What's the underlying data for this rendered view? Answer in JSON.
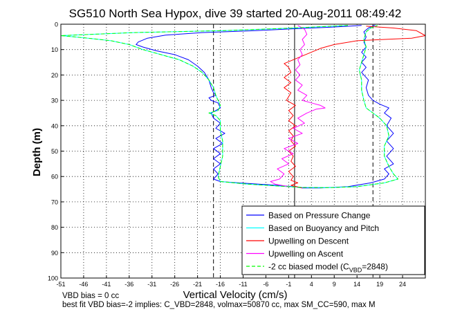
{
  "chart_data": {
    "type": "line",
    "title": "SG510 North Sea Hypox, dive 39 started 20-Aug-2011 08:49:42",
    "xlabel": "Vertical Velocity (cm/s)",
    "ylabel": "Depth (m)",
    "xlim": [
      -51,
      29
    ],
    "ylim": [
      0,
      100
    ],
    "y_reversed": true,
    "grid": true,
    "xticks": [
      -51,
      -46,
      -41,
      -36,
      -31,
      -26,
      -21,
      -16,
      -11,
      -6,
      -1,
      4,
      9,
      14,
      19,
      24
    ],
    "yticks": [
      0,
      10,
      20,
      30,
      40,
      50,
      60,
      70,
      80,
      90,
      100
    ],
    "vlines": [
      {
        "x": -17.5,
        "style": "dashed",
        "color": "#000000"
      },
      {
        "x": 0.3,
        "style": "solid",
        "color": "#000000"
      },
      {
        "x": 17.5,
        "style": "dashed",
        "color": "#000000"
      }
    ],
    "legend": {
      "position": "bottom-right",
      "entries": [
        {
          "label": "Based on Pressure Change",
          "color": "#0000ff",
          "style": "solid"
        },
        {
          "label": "Based on Buoyancy and Pitch",
          "color": "#00ffff",
          "style": "solid"
        },
        {
          "label": "Upwelling on Descent",
          "color": "#ff0000",
          "style": "solid"
        },
        {
          "label": "Upwelling on Ascent",
          "color": "#ff00ff",
          "style": "solid"
        },
        {
          "label": "-2 cc biased model (C",
          "sub": "VBD",
          "suffix": "=2848)",
          "color": "#00ff00",
          "style": "dashed"
        }
      ]
    },
    "series": [
      {
        "name": "Based on Pressure Change",
        "color": "#0000ff",
        "points": [
          [
            15,
            0.5
          ],
          [
            8,
            1.2
          ],
          [
            0,
            1.8
          ],
          [
            -8,
            2.5
          ],
          [
            -20,
            3.3
          ],
          [
            -28,
            4.3
          ],
          [
            -32,
            5.5
          ],
          [
            -34,
            7
          ],
          [
            -34.5,
            8
          ],
          [
            -33,
            9
          ],
          [
            -30,
            10.5
          ],
          [
            -26,
            12
          ],
          [
            -23,
            14
          ],
          [
            -21,
            16.5
          ],
          [
            -19.5,
            19
          ],
          [
            -18.5,
            22
          ],
          [
            -18,
            25
          ],
          [
            -17.5,
            27
          ],
          [
            -17,
            28
          ],
          [
            -18.5,
            29
          ],
          [
            -18,
            30
          ],
          [
            -16.5,
            31
          ],
          [
            -16,
            33
          ],
          [
            -17,
            34
          ],
          [
            -18,
            35
          ],
          [
            -17.5,
            37
          ],
          [
            -16,
            39
          ],
          [
            -17,
            41
          ],
          [
            -15,
            43
          ],
          [
            -17,
            45
          ],
          [
            -15.5,
            47
          ],
          [
            -17.5,
            49
          ],
          [
            -16,
            51
          ],
          [
            -17.5,
            53
          ],
          [
            -16,
            55
          ],
          [
            -17.5,
            57
          ],
          [
            -16.5,
            59
          ],
          [
            -17.5,
            61
          ],
          [
            -16,
            62
          ],
          [
            -12,
            62.5
          ],
          [
            -5,
            63.3
          ],
          [
            0,
            64
          ],
          [
            2,
            64.5
          ],
          [
            6,
            64.5
          ],
          [
            12,
            64
          ],
          [
            17,
            62.5
          ],
          [
            20,
            61
          ],
          [
            21,
            59
          ],
          [
            20,
            57
          ],
          [
            22,
            55
          ],
          [
            20.5,
            52
          ],
          [
            22,
            49
          ],
          [
            20.5,
            46
          ],
          [
            22,
            43
          ],
          [
            20.5,
            40
          ],
          [
            21.5,
            37
          ],
          [
            20,
            35
          ],
          [
            21,
            33
          ],
          [
            19,
            31.5
          ],
          [
            17.5,
            30
          ],
          [
            16.5,
            28
          ],
          [
            16,
            25
          ],
          [
            16.5,
            22
          ],
          [
            15,
            19
          ],
          [
            16,
            17
          ],
          [
            15,
            15
          ],
          [
            16,
            13
          ],
          [
            15,
            11
          ],
          [
            16,
            9
          ],
          [
            15.5,
            7
          ],
          [
            16,
            5
          ],
          [
            15.5,
            3
          ],
          [
            16.5,
            1.5
          ],
          [
            18,
            0.3
          ]
        ]
      },
      {
        "name": "Based on Buoyancy and Pitch",
        "color": "#00ffff",
        "points": [
          [
            12,
            0.5
          ],
          [
            0,
            1.5
          ],
          [
            -15,
            2.5
          ],
          [
            -35,
            3.3
          ],
          [
            -51,
            4.5
          ],
          [
            -45,
            5.5
          ],
          [
            -40,
            6.5
          ],
          [
            -36,
            8
          ],
          [
            -33,
            10
          ],
          [
            -29,
            12
          ],
          [
            -25,
            14
          ],
          [
            -22,
            16.5
          ],
          [
            -20,
            19
          ],
          [
            -18.5,
            22
          ],
          [
            -17.5,
            25
          ],
          [
            -17,
            28
          ],
          [
            -16.5,
            30
          ],
          [
            -16,
            32
          ],
          [
            -16.5,
            34
          ],
          [
            -18.5,
            35
          ],
          [
            -17,
            36
          ],
          [
            -16,
            38
          ],
          [
            -16,
            42
          ],
          [
            -15.5,
            46
          ],
          [
            -15.5,
            52
          ],
          [
            -16,
            56
          ],
          [
            -16.5,
            60
          ],
          [
            -16,
            62
          ],
          [
            -10,
            63
          ],
          [
            -3,
            63.8
          ],
          [
            2,
            64.3
          ],
          [
            8,
            64.4
          ],
          [
            14,
            64
          ],
          [
            20,
            62.5
          ],
          [
            23,
            61
          ],
          [
            22,
            59
          ],
          [
            21,
            56
          ],
          [
            20,
            52
          ],
          [
            20,
            48
          ],
          [
            21,
            44
          ],
          [
            20.5,
            40
          ],
          [
            19,
            37
          ],
          [
            17.5,
            35
          ],
          [
            16,
            33
          ],
          [
            15.5,
            30
          ],
          [
            15,
            26
          ],
          [
            15,
            22
          ],
          [
            14.5,
            18
          ],
          [
            15,
            15
          ],
          [
            15.5,
            12
          ],
          [
            16,
            9
          ],
          [
            15.5,
            6
          ],
          [
            16,
            3
          ],
          [
            17,
            1.5
          ],
          [
            18.5,
            0.5
          ]
        ]
      },
      {
        "name": "Upwelling on Descent",
        "color": "#ff0000",
        "points": [
          [
            16,
            0.8
          ],
          [
            22,
            1.5
          ],
          [
            27,
            2.5
          ],
          [
            29,
            4.5
          ],
          [
            26,
            5.5
          ],
          [
            20,
            6
          ],
          [
            14,
            6.5
          ],
          [
            9,
            8
          ],
          [
            6,
            9.5
          ],
          [
            4,
            11
          ],
          [
            2,
            12.5
          ],
          [
            0,
            14
          ],
          [
            -2,
            15.5
          ],
          [
            -1,
            17
          ],
          [
            -0.5,
            19
          ],
          [
            -2,
            21
          ],
          [
            -0.5,
            23
          ],
          [
            -2,
            25
          ],
          [
            -0.5,
            27
          ],
          [
            -1.5,
            30
          ],
          [
            0.5,
            32
          ],
          [
            -1,
            34
          ],
          [
            0,
            36
          ],
          [
            -1,
            38
          ],
          [
            0.5,
            40
          ],
          [
            -1,
            42
          ],
          [
            0,
            44
          ],
          [
            -0.5,
            46
          ],
          [
            0.5,
            48
          ],
          [
            -1,
            50
          ],
          [
            0,
            52
          ],
          [
            -0.5,
            54
          ],
          [
            0.5,
            56
          ],
          [
            -1,
            58
          ],
          [
            0,
            60
          ],
          [
            -0.5,
            61.5
          ],
          [
            1,
            62.5
          ],
          [
            -0.5,
            63.5
          ],
          [
            2,
            64.5
          ]
        ]
      },
      {
        "name": "Upwelling on Ascent",
        "color": "#ff00ff",
        "points": [
          [
            -1,
            64
          ],
          [
            -4,
            63
          ],
          [
            -5,
            62
          ],
          [
            -3,
            61
          ],
          [
            -2,
            59
          ],
          [
            -3.5,
            57
          ],
          [
            -1,
            55
          ],
          [
            -2.5,
            53
          ],
          [
            0,
            51
          ],
          [
            -2,
            49
          ],
          [
            1,
            47
          ],
          [
            -1,
            45
          ],
          [
            2,
            43
          ],
          [
            0,
            41
          ],
          [
            2.5,
            39
          ],
          [
            1,
            37
          ],
          [
            3,
            35
          ],
          [
            5,
            33.5
          ],
          [
            7,
            33
          ],
          [
            6,
            32
          ],
          [
            4,
            31
          ],
          [
            2,
            30
          ],
          [
            3,
            28
          ],
          [
            1,
            26
          ],
          [
            2,
            24
          ],
          [
            0.5,
            22
          ],
          [
            1.5,
            20
          ],
          [
            0.5,
            18
          ],
          [
            1.5,
            16
          ],
          [
            1,
            14
          ],
          [
            2,
            12
          ],
          [
            1.5,
            10
          ],
          [
            2.5,
            8
          ],
          [
            2,
            6
          ],
          [
            3,
            4
          ],
          [
            2.5,
            2
          ],
          [
            1,
            0.5
          ]
        ]
      },
      {
        "name": "-2 cc biased model (C_VBD=2848)",
        "color": "#00ff00",
        "points": [
          [
            12,
            0.5
          ],
          [
            0,
            1.5
          ],
          [
            -15,
            2.5
          ],
          [
            -35,
            3.3
          ],
          [
            -51,
            4.5
          ],
          [
            -45,
            5.5
          ],
          [
            -40,
            6.5
          ],
          [
            -36,
            8
          ],
          [
            -33,
            10
          ],
          [
            -29,
            12
          ],
          [
            -25,
            14
          ],
          [
            -22,
            16.5
          ],
          [
            -20,
            19
          ],
          [
            -18.5,
            22
          ],
          [
            -17.5,
            25
          ],
          [
            -17,
            28
          ],
          [
            -16.5,
            30
          ],
          [
            -16,
            32
          ],
          [
            -16.5,
            34
          ],
          [
            -18.5,
            35
          ],
          [
            -17,
            36
          ],
          [
            -16,
            38
          ],
          [
            -16,
            42
          ],
          [
            -15.5,
            46
          ],
          [
            -15.5,
            52
          ],
          [
            -16,
            56
          ],
          [
            -16.5,
            60
          ],
          [
            -16,
            62
          ],
          [
            -10,
            63
          ],
          [
            -3,
            63.8
          ],
          [
            2,
            64.3
          ],
          [
            8,
            64.4
          ],
          [
            14,
            64
          ],
          [
            20,
            62.5
          ],
          [
            23,
            61
          ],
          [
            22,
            59
          ],
          [
            21,
            56
          ],
          [
            20,
            52
          ],
          [
            20,
            48
          ],
          [
            21,
            44
          ],
          [
            20.5,
            40
          ],
          [
            19,
            37
          ],
          [
            17.5,
            35
          ],
          [
            16,
            33
          ],
          [
            15.5,
            30
          ],
          [
            15,
            26
          ],
          [
            15,
            22
          ],
          [
            14.5,
            18
          ],
          [
            15,
            15
          ],
          [
            15.5,
            12
          ],
          [
            16,
            9
          ],
          [
            15.5,
            6
          ],
          [
            16,
            3
          ],
          [
            17,
            1.5
          ],
          [
            18.5,
            0.5
          ]
        ]
      }
    ],
    "annotations": [
      "VBD bias = 0 cc",
      "best fit VBD bias=-2 implies: C_VBD=2848, volmax=50870 cc, max SM_CC=590, max M"
    ]
  }
}
